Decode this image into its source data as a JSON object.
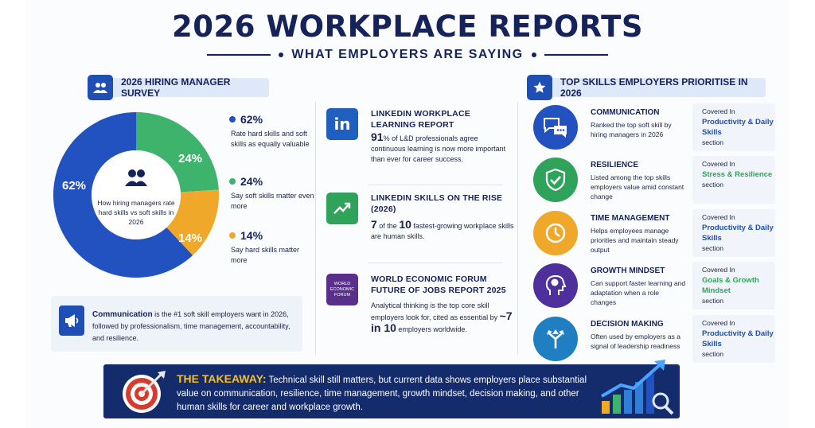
{
  "header": {
    "title": "2026 WORKPLACE REPORTS",
    "subtitle": "WHAT EMPLOYERS ARE SAYING"
  },
  "survey": {
    "pill_label": "2026 HIRING MANAGER SURVEY",
    "center_text": "How hiring managers rate hard skills vs soft skills in 2026",
    "slices": [
      {
        "label": "62%",
        "value": 62,
        "color": "#2251c0"
      },
      {
        "label": "24%",
        "value": 24,
        "color": "#3db36b"
      },
      {
        "label": "14%",
        "value": 14,
        "color": "#f0a82a"
      }
    ],
    "legend": [
      {
        "pct": "62%",
        "text": "Rate hard skills and soft skills as equally valuable",
        "color": "#2251c0"
      },
      {
        "pct": "24%",
        "text": "Say soft skills matter even more",
        "color": "#3db36b"
      },
      {
        "pct": "14%",
        "text": "Say hard skills matter more",
        "color": "#f0a82a"
      }
    ],
    "note_bold": "Communication",
    "note_text": " is the #1 soft skill employers want in 2026, followed by professionalism, time management, accountability, and resilience."
  },
  "reports": [
    {
      "title": "LINKEDIN WORKPLACE LEARNING REPORT",
      "big": "91",
      "body": "% of L&D professionals agree continuous learning is now more important than ever for career success.",
      "logo_color": "#1f5fbf"
    },
    {
      "title": "LINKEDIN SKILLS ON THE RISE (2026)",
      "big_a": "7",
      "mid": " of the ",
      "big_b": "10",
      "body": " fastest-growing workplace skills are human skills.",
      "logo_color": "#2fa35a"
    },
    {
      "title": "WORLD ECONOMIC FORUM FUTURE OF JOBS REPORT 2025",
      "body_a": "Analytical thinking is the top core skill employers look for, cited as essential by ",
      "big": "~7 in 10",
      "body_b": " employers worldwide.",
      "logo_text": "WORLD ECONOMIC FORUM",
      "logo_color": "#5a2f8c"
    }
  ],
  "skills": {
    "pill_label": "TOP SKILLS EMPLOYERS PRIORITISE IN 2026",
    "items": [
      {
        "name": "COMMUNICATION",
        "desc": "Ranked the top soft skill by hiring managers in 2026",
        "covered": "Covered In",
        "section": "Productivity & Daily Skills",
        "suffix": "section",
        "color": "#2251c0",
        "icon": "chat-bubbles-icon"
      },
      {
        "name": "RESILIENCE",
        "desc": "Listed among the top skills employers value amid constant change",
        "covered": "Covered In",
        "section": "Stress & Resilience",
        "suffix": "section",
        "color": "#2fa35a",
        "icon": "shield-check-icon"
      },
      {
        "name": "TIME MANAGEMENT",
        "desc": "Helps employees manage priorities and maintain steady output",
        "covered": "Covered In",
        "section": "Productivity & Daily Skills",
        "suffix": "section",
        "color": "#f0a82a",
        "icon": "clock-icon"
      },
      {
        "name": "GROWTH MINDSET",
        "desc": "Can support faster learning and adaptation when a role changes",
        "covered": "Covered In",
        "section": "Goals & Growth Mindset",
        "suffix": "section",
        "color": "#4f2f9c",
        "icon": "brain-head-icon"
      },
      {
        "name": "DECISION MAKING",
        "desc": "Often used by employers as a signal of leadership readiness",
        "covered": "Covered In",
        "section": "Productivity & Daily Skills",
        "suffix": "section",
        "color": "#1f7fc0",
        "icon": "split-arrows-icon"
      }
    ]
  },
  "takeaway": {
    "label": "THE TAKEAWAY:",
    "text": " Technical skill still matters, but current data shows employers place substantial value on communication, resilience, time management, growth mindset, decision making, and other human skills  for career and workplace growth."
  }
}
